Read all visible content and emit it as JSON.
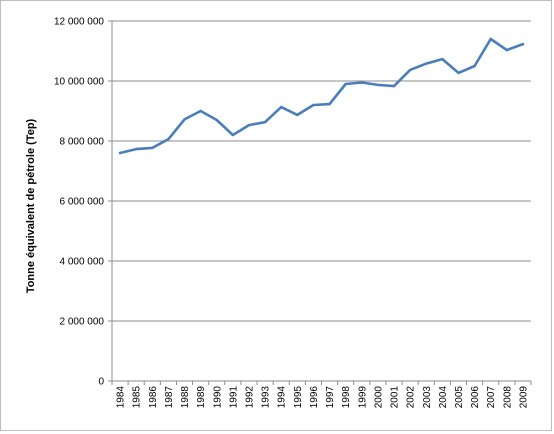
{
  "chart_data": {
    "type": "line",
    "title": "",
    "xlabel": "",
    "ylabel": "Tonne équivalent de pétrole (Tep)",
    "ylim": [
      0,
      12000000
    ],
    "y_ticks": [
      0,
      2000000,
      4000000,
      6000000,
      8000000,
      10000000,
      12000000
    ],
    "y_tick_labels": [
      "0",
      "2 000 000",
      "4 000 000",
      "6 000 000",
      "8 000 000",
      "10 000 000",
      "12 000 000"
    ],
    "grid": "horizontal",
    "legend": "none",
    "categories": [
      "1984",
      "1985",
      "1986",
      "1987",
      "1988",
      "1989",
      "1990",
      "1991",
      "1992",
      "1993",
      "1994",
      "1995",
      "1996",
      "1997",
      "1998",
      "1999",
      "2000",
      "2001",
      "2002",
      "2003",
      "2004",
      "2005",
      "2006",
      "2007",
      "2008",
      "2009"
    ],
    "series": [
      {
        "color": "#4a7ebb",
        "values": [
          7600000,
          7730000,
          7770000,
          8060000,
          8720000,
          9000000,
          8700000,
          8200000,
          8530000,
          8630000,
          9130000,
          8870000,
          9200000,
          9230000,
          9900000,
          9950000,
          9870000,
          9830000,
          10370000,
          10580000,
          10730000,
          10270000,
          10500000,
          11400000,
          11030000,
          11230000
        ]
      }
    ]
  }
}
